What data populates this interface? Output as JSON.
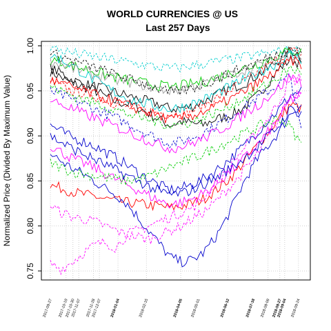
{
  "chart_data": {
    "type": "line",
    "title": "WORLD CURRENCIES @ US",
    "subtitle": "Last 257 Days",
    "xlabel": "",
    "ylabel": "Normalized Price (Divided By Maximum Value)",
    "ylim": [
      0.74,
      1.005
    ],
    "yticks": [
      0.75,
      0.8,
      0.85,
      0.9,
      0.95,
      1.0
    ],
    "ytick_labels": [
      "0.75",
      "0.80",
      "0.85",
      "0.90",
      "0.95",
      "1.00"
    ],
    "grid": true,
    "grid_style": "dotted",
    "x_range": [
      0,
      256
    ],
    "xticks": [
      {
        "label": "2017-09-27",
        "day": 0,
        "bold": false
      },
      {
        "label": "2017-10-19",
        "day": 16,
        "bold": false
      },
      {
        "label": "2017-10-30",
        "day": 23,
        "bold": false
      },
      {
        "label": "2017-11-07",
        "day": 29,
        "bold": false
      },
      {
        "label": "2017-11-28",
        "day": 44,
        "bold": false
      },
      {
        "label": "2017-12-07",
        "day": 50,
        "bold": false
      },
      {
        "label": "2018-01-04",
        "day": 69,
        "bold": true
      },
      {
        "label": "2018-02-15",
        "day": 98,
        "bold": false
      },
      {
        "label": "2018-04-05",
        "day": 133,
        "bold": true
      },
      {
        "label": "2018-05-01",
        "day": 151,
        "bold": false
      },
      {
        "label": "2018-06-12",
        "day": 181,
        "bold": true
      },
      {
        "label": "2018-07-18",
        "day": 207,
        "bold": true
      },
      {
        "label": "2018-08-09",
        "day": 222,
        "bold": false
      },
      {
        "label": "2018-08-27",
        "day": 234,
        "bold": true
      },
      {
        "label": "2018-09-04",
        "day": 239,
        "bold": true
      },
      {
        "label": "2018-09-24",
        "day": 253,
        "bold": false
      }
    ],
    "series": [
      {
        "color": "#000000",
        "dash": "solid",
        "values": [
          0.972,
          0.965,
          0.958,
          0.955,
          0.951,
          0.944,
          0.938,
          0.936,
          0.932,
          0.925,
          0.918,
          0.912,
          0.916,
          0.914,
          0.912,
          0.918,
          0.921,
          0.926,
          0.934,
          0.945,
          0.96,
          0.975,
          0.985,
          0.98
        ]
      },
      {
        "color": "#000000",
        "dash": "solid",
        "values": [
          0.975,
          0.97,
          0.962,
          0.958,
          0.955,
          0.952,
          0.948,
          0.945,
          0.941,
          0.938,
          0.935,
          0.93,
          0.931,
          0.933,
          0.938,
          0.944,
          0.95,
          0.955,
          0.96,
          0.968,
          0.975,
          0.985,
          0.995,
          0.99
        ]
      },
      {
        "color": "#ff0000",
        "dash": "solid",
        "values": [
          0.845,
          0.842,
          0.838,
          0.835,
          0.833,
          0.83,
          0.828,
          0.826,
          0.825,
          0.823,
          0.822,
          0.82,
          0.822,
          0.825,
          0.83,
          0.838,
          0.848,
          0.86,
          0.875,
          0.89,
          0.905,
          0.92,
          0.935,
          0.93
        ]
      },
      {
        "color": "#ff0000",
        "dash": "dashed",
        "values": [
          0.96,
          0.955,
          0.95,
          0.948,
          0.945,
          0.94,
          0.936,
          0.932,
          0.93,
          0.928,
          0.926,
          0.924,
          0.925,
          0.928,
          0.934,
          0.94,
          0.948,
          0.955,
          0.962,
          0.97,
          0.978,
          0.986,
          0.995,
          0.99
        ]
      },
      {
        "color": "#0000cd",
        "dash": "solid",
        "values": [
          0.88,
          0.872,
          0.864,
          0.858,
          0.85,
          0.842,
          0.835,
          0.825,
          0.81,
          0.795,
          0.78,
          0.765,
          0.76,
          0.762,
          0.77,
          0.785,
          0.805,
          0.83,
          0.855,
          0.875,
          0.89,
          0.905,
          0.925,
          0.935
        ]
      },
      {
        "color": "#0000cd",
        "dash": "solid",
        "values": [
          0.912,
          0.905,
          0.898,
          0.894,
          0.889,
          0.882,
          0.876,
          0.868,
          0.86,
          0.852,
          0.845,
          0.84,
          0.842,
          0.846,
          0.852,
          0.86,
          0.87,
          0.88,
          0.892,
          0.905,
          0.918,
          0.93,
          0.945,
          0.95
        ]
      },
      {
        "color": "#0000cd",
        "dash": "dashed",
        "values": [
          0.95,
          0.945,
          0.94,
          0.936,
          0.93,
          0.925,
          0.92,
          0.914,
          0.908,
          0.902,
          0.896,
          0.892,
          0.894,
          0.898,
          0.904,
          0.91,
          0.918,
          0.926,
          0.934,
          0.942,
          0.95,
          0.958,
          0.966,
          0.905
        ]
      },
      {
        "color": "#ff00ff",
        "dash": "dashed",
        "values": [
          0.758,
          0.752,
          0.76,
          0.77,
          0.778,
          0.782,
          0.776,
          0.79,
          0.795,
          0.8,
          0.805,
          0.81,
          0.815,
          0.82,
          0.83,
          0.845,
          0.86,
          0.875,
          0.89,
          0.905,
          0.92,
          0.94,
          0.96,
          0.965
        ]
      },
      {
        "color": "#ff00ff",
        "dash": "dashed",
        "values": [
          0.822,
          0.815,
          0.81,
          0.808,
          0.805,
          0.8,
          0.795,
          0.79,
          0.788,
          0.785,
          0.79,
          0.795,
          0.8,
          0.808,
          0.815,
          0.825,
          0.838,
          0.85,
          0.865,
          0.88,
          0.9,
          0.92,
          0.945,
          0.95
        ]
      },
      {
        "color": "#ff00ff",
        "dash": "solid",
        "values": [
          0.89,
          0.882,
          0.875,
          0.87,
          0.865,
          0.858,
          0.852,
          0.846,
          0.84,
          0.834,
          0.828,
          0.824,
          0.826,
          0.83,
          0.836,
          0.845,
          0.855,
          0.866,
          0.878,
          0.89,
          0.905,
          0.92,
          0.94,
          0.945
        ]
      },
      {
        "color": "#00cd00",
        "dash": "dashed",
        "values": [
          0.87,
          0.865,
          0.86,
          0.858,
          0.856,
          0.854,
          0.852,
          0.85,
          0.852,
          0.855,
          0.86,
          0.866,
          0.87,
          0.875,
          0.88,
          0.886,
          0.892,
          0.898,
          0.904,
          0.91,
          0.915,
          0.92,
          0.91,
          0.89
        ]
      },
      {
        "color": "#00cd00",
        "dash": "solid",
        "values": [
          0.985,
          0.982,
          0.978,
          0.975,
          0.972,
          0.968,
          0.965,
          0.962,
          0.96,
          0.958,
          0.956,
          0.954,
          0.956,
          0.958,
          0.96,
          0.964,
          0.968,
          0.972,
          0.976,
          0.98,
          0.985,
          0.99,
          0.995,
          0.993
        ]
      },
      {
        "color": "#00cdcd",
        "dash": "solid",
        "values": [
          0.99,
          0.985,
          0.978,
          0.97,
          0.962,
          0.955,
          0.948,
          0.942,
          0.938,
          0.935,
          0.932,
          0.93,
          0.932,
          0.936,
          0.94,
          0.946,
          0.952,
          0.958,
          0.964,
          0.97,
          0.976,
          0.982,
          0.99,
          0.985
        ]
      },
      {
        "color": "#00cdcd",
        "dash": "dashed",
        "values": [
          0.998,
          0.995,
          0.992,
          0.99,
          0.988,
          0.986,
          0.984,
          0.982,
          0.98,
          0.978,
          0.976,
          0.975,
          0.976,
          0.978,
          0.98,
          0.982,
          0.984,
          0.986,
          0.988,
          0.99,
          0.992,
          0.994,
          0.996,
          0.995
        ]
      },
      {
        "color": "#9e9e9e",
        "dash": "solid",
        "values": [
          0.982,
          0.98,
          0.975,
          0.972,
          0.968,
          0.966,
          0.962,
          0.96,
          0.958,
          0.955,
          0.952,
          0.95,
          0.952,
          0.955,
          0.958,
          0.962,
          0.966,
          0.97,
          0.974,
          0.978,
          0.982,
          0.986,
          0.99,
          0.988
        ]
      },
      {
        "color": "#0000cd",
        "dash": "solid",
        "values": [
          0.9,
          0.893,
          0.886,
          0.88,
          0.874,
          0.868,
          0.862,
          0.856,
          0.85,
          0.844,
          0.838,
          0.835,
          0.836,
          0.84,
          0.846,
          0.852,
          0.86,
          0.868,
          0.878,
          0.888,
          0.9,
          0.912,
          0.93,
          0.925
        ]
      },
      {
        "color": "#ff00ff",
        "dash": "solid",
        "values": [
          0.94,
          0.935,
          0.93,
          0.925,
          0.92,
          0.915,
          0.91,
          0.905,
          0.9,
          0.895,
          0.89,
          0.886,
          0.888,
          0.892,
          0.897,
          0.903,
          0.91,
          0.918,
          0.926,
          0.934,
          0.944,
          0.954,
          0.966,
          0.96
        ]
      },
      {
        "color": "#000000",
        "dash": "dashed",
        "values": [
          0.992,
          0.988,
          0.984,
          0.98,
          0.976,
          0.972,
          0.968,
          0.964,
          0.96,
          0.956,
          0.952,
          0.948,
          0.95,
          0.953,
          0.957,
          0.962,
          0.967,
          0.972,
          0.977,
          0.982,
          0.987,
          0.992,
          0.998,
          0.994
        ]
      },
      {
        "color": "#00cd00",
        "dash": "dashed",
        "values": [
          0.955,
          0.95,
          0.945,
          0.941,
          0.937,
          0.933,
          0.929,
          0.925,
          0.921,
          0.918,
          0.915,
          0.912,
          0.913,
          0.916,
          0.92,
          0.925,
          0.931,
          0.937,
          0.944,
          0.951,
          0.958,
          0.966,
          0.975,
          0.97
        ]
      },
      {
        "color": "#ff0000",
        "dash": "solid",
        "values": [
          0.962,
          0.958,
          0.954,
          0.95,
          0.946,
          0.942,
          0.938,
          0.934,
          0.93,
          0.926,
          0.922,
          0.918,
          0.92,
          0.923,
          0.927,
          0.932,
          0.938,
          0.944,
          0.951,
          0.958,
          0.966,
          0.974,
          0.984,
          0.98
        ]
      }
    ]
  }
}
